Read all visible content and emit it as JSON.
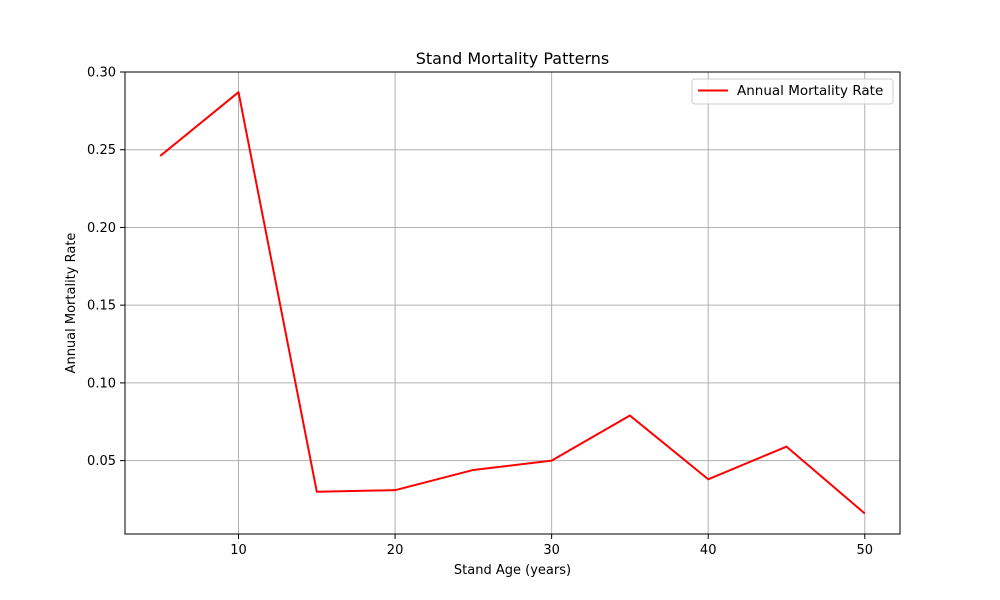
{
  "chart_data": {
    "type": "line",
    "title": "Stand Mortality Patterns",
    "xlabel": "Stand Age (years)",
    "ylabel": "Annual Mortality Rate",
    "x": [
      5,
      10,
      15,
      20,
      25,
      30,
      35,
      40,
      45,
      50
    ],
    "series": [
      {
        "name": "Annual Mortality Rate",
        "color": "#ff0000",
        "values": [
          0.246,
          0.287,
          0.03,
          0.031,
          0.044,
          0.05,
          0.079,
          0.038,
          0.059,
          0.016
        ]
      }
    ],
    "xlim": [
      2.75,
      52.25
    ],
    "ylim": [
      0.0028,
      0.3
    ],
    "xticks": [
      10,
      20,
      30,
      40,
      50
    ],
    "xtick_labels": [
      "10",
      "20",
      "30",
      "40",
      "50"
    ],
    "yticks": [
      0.05,
      0.1,
      0.15,
      0.2,
      0.25,
      0.3
    ],
    "ytick_labels": [
      "0.05",
      "0.10",
      "0.15",
      "0.20",
      "0.25",
      "0.30"
    ],
    "grid": true,
    "grid_color": "#b0b0b0",
    "legend_position": "top-right"
  }
}
